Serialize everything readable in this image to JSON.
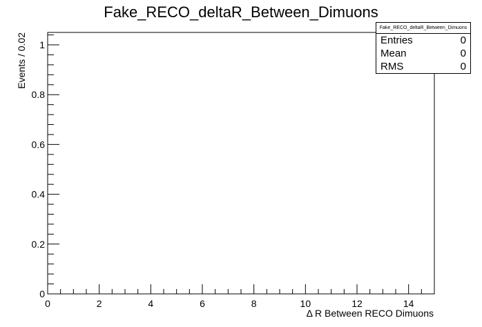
{
  "chart_data": {
    "type": "bar",
    "title": "Fake_RECO_deltaR_Between_Dimuons",
    "xlabel": "Δ R Between RECO Dimuons",
    "ylabel": "Events / 0.02",
    "xlim": [
      0,
      15
    ],
    "ylim": [
      0,
      1.05
    ],
    "x_major_ticks": [
      0,
      2,
      4,
      6,
      8,
      10,
      12,
      14
    ],
    "x_tick_labels": [
      "0",
      "2",
      "4",
      "6",
      "8",
      "10",
      "12",
      "14"
    ],
    "y_major_ticks": [
      0,
      0.2,
      0.4,
      0.6,
      0.8,
      1
    ],
    "y_tick_labels": [
      "0",
      "0.2",
      "0.4",
      "0.6",
      "0.8",
      "1"
    ],
    "values": [],
    "grid": false,
    "legend": "none",
    "stats": {
      "name": "Fake_RECO_deltaR_Between_Dimuons",
      "placement": "top-right",
      "rows": [
        {
          "label": "Entries",
          "value": "0"
        },
        {
          "label": "Mean",
          "value": "0"
        },
        {
          "label": "RMS",
          "value": "0"
        }
      ]
    }
  }
}
